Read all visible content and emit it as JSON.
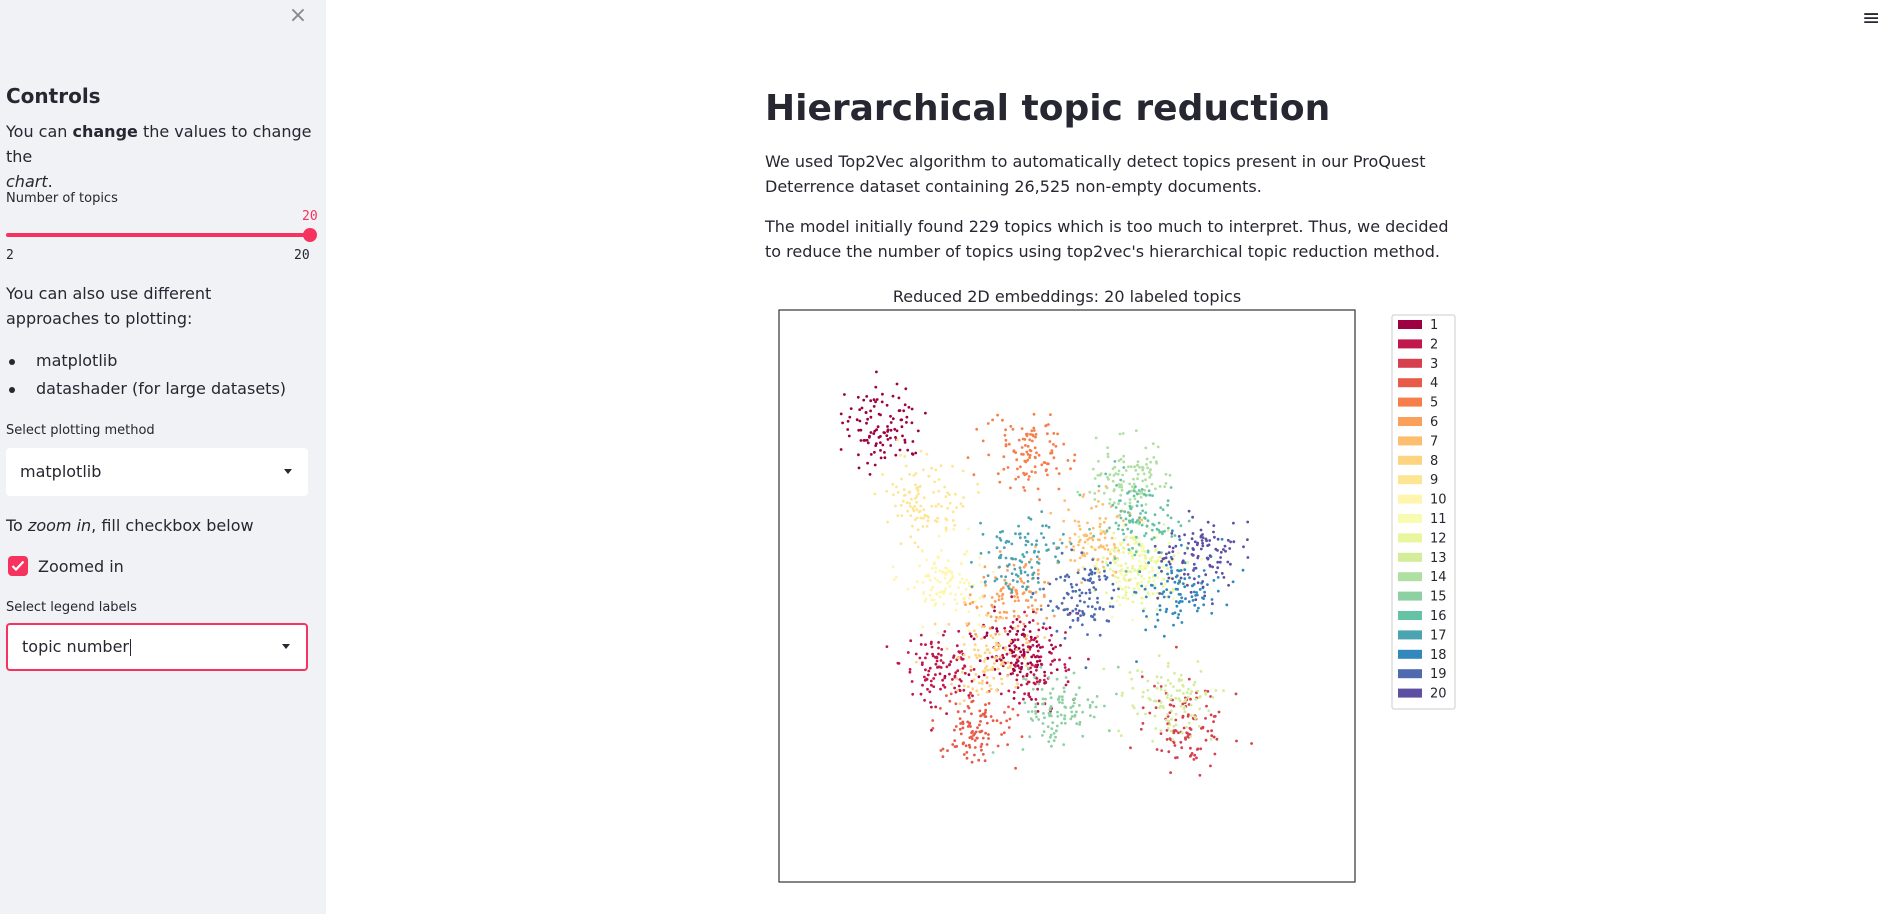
{
  "sidebar": {
    "close_icon": "×",
    "title": "Controls",
    "intro_prefix": "You can ",
    "intro_bold": "change",
    "intro_middle": " the values to change the",
    "intro_italic": "chart",
    "intro_end": ".",
    "slider": {
      "label": "Number of topics",
      "value": 20,
      "min": 2,
      "max": 20
    },
    "approaches_text": "You can also use different approaches to plotting:",
    "approaches": [
      "matplotlib",
      "datashader (for large datasets)"
    ],
    "plot_method": {
      "label": "Select plotting method",
      "value": "matplotlib"
    },
    "zoom_text_prefix": "To ",
    "zoom_text_italic": "zoom in",
    "zoom_text_suffix": ", fill checkbox below",
    "zoom_checkbox": {
      "label": "Zoomed in",
      "checked": true
    },
    "legend_labels": {
      "label": "Select legend labels",
      "value": "topic number"
    }
  },
  "menu_icon": "hamburger-menu-icon",
  "main": {
    "title": "Hierarchical topic reduction",
    "paragraph1": "We used Top2Vec algorithm to automatically detect topics present in our ProQuest Deterrence dataset containing 26,525 non-empty documents.",
    "paragraph2": "The model initially found 229 topics which is too much to interpret. Thus, we decided to reduce the number of topics using top2vec's hierarchical topic reduction method."
  },
  "colors": {
    "accent": "#f6335e",
    "sidebar_bg": "#f0f2f6"
  },
  "chart_data": {
    "type": "scatter",
    "title": "Reduced 2D embeddings: 20 labeled topics",
    "legend_position": "right",
    "legend": [
      "1",
      "2",
      "3",
      "4",
      "5",
      "6",
      "7",
      "8",
      "9",
      "10",
      "11",
      "12",
      "13",
      "14",
      "15",
      "16",
      "17",
      "18",
      "19",
      "20"
    ],
    "series_colors": [
      "#9e0142",
      "#c0174c",
      "#d6404e",
      "#e85b48",
      "#f67e4b",
      "#fba05b",
      "#fdbf6f",
      "#fed481",
      "#fee593",
      "#fff5ae",
      "#f7fcb1",
      "#e9f69d",
      "#d4ed9b",
      "#b0dfa2",
      "#8dd1a2",
      "#66c2a5",
      "#4ba4b1",
      "#3288bd",
      "#4f6aaf",
      "#5e4fa2"
    ],
    "clusters": [
      {
        "topic": 1,
        "cx": 0.18,
        "cy": 0.2
      },
      {
        "topic": 1,
        "cx": 0.41,
        "cy": 0.6
      },
      {
        "topic": 2,
        "cx": 0.44,
        "cy": 0.62
      },
      {
        "topic": 2,
        "cx": 0.28,
        "cy": 0.62
      },
      {
        "topic": 3,
        "cx": 0.71,
        "cy": 0.73
      },
      {
        "topic": 4,
        "cx": 0.34,
        "cy": 0.73
      },
      {
        "topic": 5,
        "cx": 0.43,
        "cy": 0.25
      },
      {
        "topic": 6,
        "cx": 0.4,
        "cy": 0.5
      },
      {
        "topic": 7,
        "cx": 0.55,
        "cy": 0.4
      },
      {
        "topic": 8,
        "cx": 0.37,
        "cy": 0.61
      },
      {
        "topic": 9,
        "cx": 0.25,
        "cy": 0.33
      },
      {
        "topic": 10,
        "cx": 0.29,
        "cy": 0.47
      },
      {
        "topic": 11,
        "cx": 0.63,
        "cy": 0.45
      },
      {
        "topic": 12,
        "cx": 0.61,
        "cy": 0.45
      },
      {
        "topic": 13,
        "cx": 0.68,
        "cy": 0.68
      },
      {
        "topic": 14,
        "cx": 0.61,
        "cy": 0.3
      },
      {
        "topic": 15,
        "cx": 0.49,
        "cy": 0.7
      },
      {
        "topic": 16,
        "cx": 0.62,
        "cy": 0.37
      },
      {
        "topic": 17,
        "cx": 0.42,
        "cy": 0.43
      },
      {
        "topic": 18,
        "cx": 0.69,
        "cy": 0.49
      },
      {
        "topic": 19,
        "cx": 0.52,
        "cy": 0.5
      },
      {
        "topic": 20,
        "cx": 0.73,
        "cy": 0.43
      }
    ]
  }
}
